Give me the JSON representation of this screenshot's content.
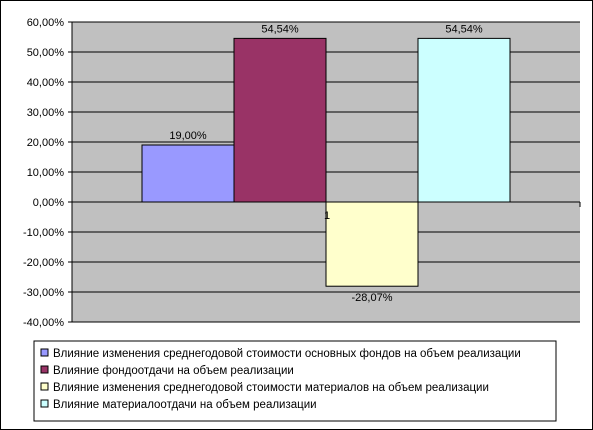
{
  "chart_data": {
    "type": "bar",
    "title": "",
    "xlabel": "",
    "ylabel": "",
    "ylim": [
      -0.4,
      0.6
    ],
    "y_ticks": [
      0.6,
      0.5,
      0.4,
      0.3,
      0.2,
      0.1,
      0.0,
      -0.1,
      -0.2,
      -0.3,
      -0.4
    ],
    "y_tick_labels": [
      "60,00%",
      "50,00%",
      "40,00%",
      "30,00%",
      "20,00%",
      "10,00%",
      "0,00%",
      "-10,00%",
      "-20,00%",
      "-30,00%",
      "-40,00%"
    ],
    "grid": true,
    "legend_position": "bottom",
    "plot_background": "#c0c0c0",
    "series": [
      {
        "name": "Влияние изменения среднегодовой стоимости основных фондов на объем реализации",
        "value": 0.19,
        "label": "19,00%",
        "color": "#9999ff"
      },
      {
        "name": "Влияние фондоотдачи на объем реализации",
        "value": 0.5454,
        "label": "54,54%",
        "color": "#993366"
      },
      {
        "name": "Влияние изменения среднегодовой стоимости материалов на объем реализации",
        "value": -0.2807,
        "label": "-28,07%",
        "color": "#ffffcc"
      },
      {
        "name": "Влияние материалоотдачи на объем реализации",
        "value": 0.5454,
        "label": "54,54%",
        "color": "#ccffff"
      }
    ],
    "stray_mark": "1"
  }
}
